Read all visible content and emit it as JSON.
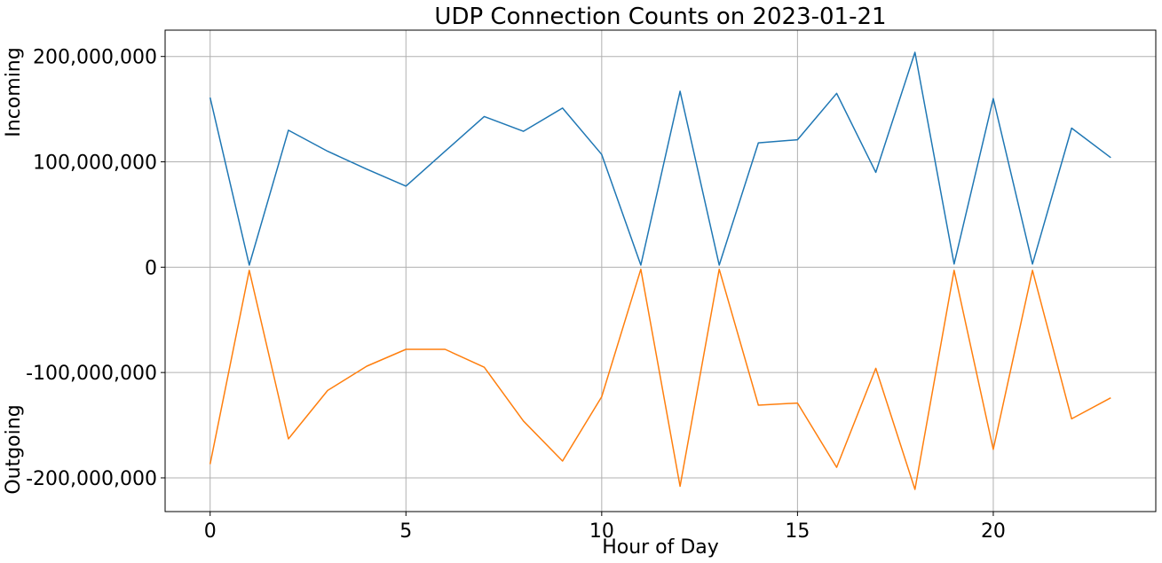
{
  "chart_data": {
    "type": "line",
    "title": "UDP Connection Counts on 2023-01-21",
    "xlabel": "Hour of Day",
    "ylabel_top": "Incoming",
    "ylabel_bottom": "Outgoing",
    "x": [
      0,
      1,
      2,
      3,
      4,
      5,
      6,
      7,
      8,
      9,
      10,
      11,
      12,
      13,
      14,
      15,
      16,
      17,
      18,
      19,
      20,
      21,
      22,
      23
    ],
    "xlim": [
      -1.15,
      24.15
    ],
    "ylim": [
      -232000000,
      225000000
    ],
    "xticks": [
      0,
      5,
      10,
      15,
      20
    ],
    "yticks": [
      200000000,
      100000000,
      0,
      -100000000,
      -200000000
    ],
    "ytick_labels": [
      "200,000,000",
      "100,000,000",
      "0",
      "-100,000,000",
      "-200,000,000"
    ],
    "grid": true,
    "series": [
      {
        "color": "#1f77b4",
        "values": [
          161000000,
          2000000,
          130000000,
          110000000,
          93000000,
          77000000,
          110000000,
          143000000,
          129000000,
          151000000,
          107000000,
          2000000,
          167000000,
          2000000,
          118000000,
          121000000,
          165000000,
          90000000,
          204000000,
          3000000,
          160000000,
          3000000,
          132000000,
          104000000
        ]
      },
      {
        "color": "#ff7f0e",
        "values": [
          -187000000,
          -3000000,
          -163000000,
          -117000000,
          -94000000,
          -78000000,
          -78000000,
          -95000000,
          -146000000,
          -184000000,
          -123000000,
          -2000000,
          -208000000,
          -2000000,
          -131000000,
          -129000000,
          -190000000,
          -96000000,
          -211000000,
          -3000000,
          -173000000,
          -3000000,
          -144000000,
          -124000000
        ]
      }
    ]
  }
}
